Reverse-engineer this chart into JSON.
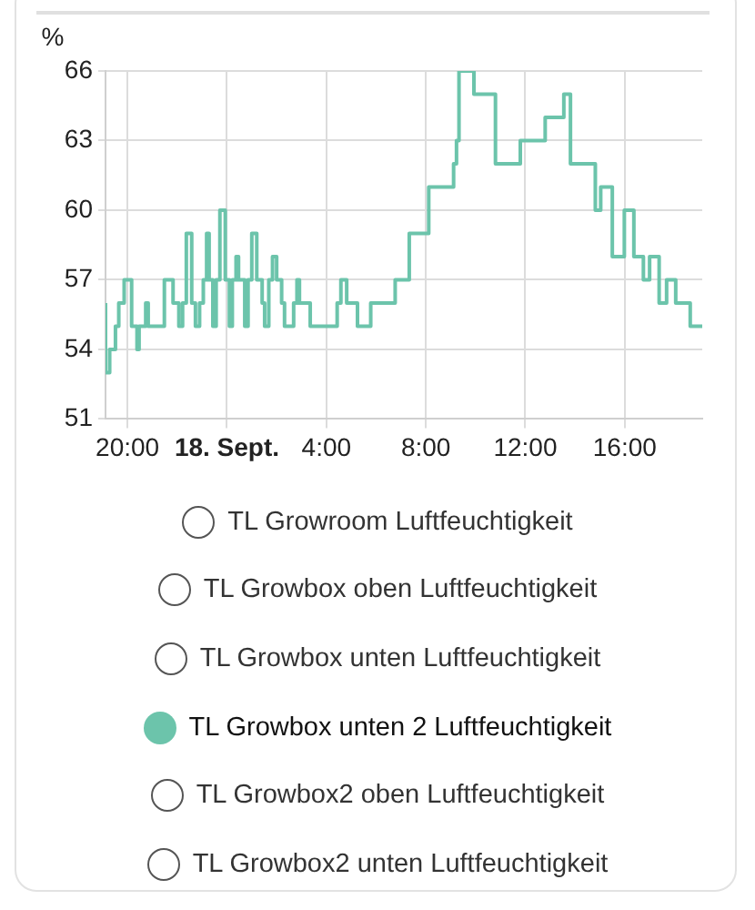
{
  "chart_data": {
    "type": "step",
    "ylabel": "%",
    "xlim": [
      "--09-17T19:07",
      "--09-18T19:07"
    ],
    "xticks": [
      {
        "value": "--09-17T20:00",
        "label": "20:00"
      },
      {
        "value": "--09-18T00:00",
        "label": "18. Sept."
      },
      {
        "value": "--09-18T04:00",
        "label": "4:00"
      },
      {
        "value": "--09-18T08:00",
        "label": "8:00"
      },
      {
        "value": "--09-18T12:00",
        "label": "12:00"
      },
      {
        "value": "--09-18T16:00",
        "label": "16:00"
      }
    ],
    "ylim": [
      51,
      66
    ],
    "yticks": [
      51,
      54,
      57,
      60,
      63,
      66
    ],
    "grid": true,
    "legend": "bottom",
    "marker": "none",
    "line_style": "solid",
    "x": [
      "--09-17T19:07",
      "--09-17T19:17",
      "--09-17T19:31",
      "--09-17T19:39",
      "--09-17T19:52",
      "--09-17T20:10",
      "--09-17T20:23",
      "--09-17T20:28",
      "--09-17T20:44",
      "--09-17T20:50",
      "--09-17T21:29",
      "--09-17T21:50",
      "--09-17T22:04",
      "--09-17T22:13",
      "--09-17T22:22",
      "--09-17T22:35",
      "--09-17T22:44",
      "--09-17T22:54",
      "--09-17T23:03",
      "--09-17T23:11",
      "--09-17T23:17",
      "--09-17T23:26",
      "--09-17T23:34",
      "--09-17T23:43",
      "--09-17T23:56",
      "--09-18T00:06",
      "--09-18T00:13",
      "--09-18T00:22",
      "--09-18T00:28",
      "--09-18T00:43",
      "--09-18T00:51",
      "--09-18T01:00",
      "--09-18T01:12",
      "--09-18T01:25",
      "--09-18T01:31",
      "--09-18T01:41",
      "--09-18T01:50",
      "--09-18T02:00",
      "--09-18T02:12",
      "--09-18T02:19",
      "--09-18T02:41",
      "--09-18T02:49",
      "--09-18T02:55",
      "--09-18T03:21",
      "--09-18T04:26",
      "--09-18T04:35",
      "--09-18T04:49",
      "--09-18T05:15",
      "--09-18T05:47",
      "--09-18T06:46",
      "--09-18T07:20",
      "--09-18T08:07",
      "--09-18T09:07",
      "--09-18T09:14",
      "--09-18T09:20",
      "--09-18T09:56",
      "--09-18T10:48",
      "--09-18T11:48",
      "--09-18T12:48",
      "--09-18T13:33",
      "--09-18T13:49",
      "--09-18T14:49",
      "--09-18T15:02",
      "--09-18T15:30",
      "--09-18T15:59",
      "--09-18T16:22",
      "--09-18T16:45",
      "--09-18T17:00",
      "--09-18T17:23",
      "--09-18T17:41",
      "--09-18T18:03",
      "--09-18T18:38",
      "--09-18T19:01",
      "--09-18T19:07"
    ],
    "series": [
      {
        "name": "TL Growroom Luftfeuchtigkeit",
        "values": [
          null,
          null,
          null,
          null,
          null,
          null,
          null,
          null,
          null,
          null,
          null,
          null,
          null,
          null,
          null,
          null,
          null,
          null,
          null,
          null,
          null,
          null,
          null,
          null,
          null,
          null,
          null,
          null,
          null,
          null,
          null,
          null,
          null,
          null,
          null,
          null,
          null,
          null,
          null,
          null,
          null,
          null,
          null,
          null,
          null,
          null,
          null,
          null,
          null,
          null,
          null,
          null,
          null,
          null,
          null,
          null,
          null,
          null,
          null,
          null,
          null,
          null,
          null,
          null,
          null,
          null,
          null,
          null,
          null,
          null,
          null,
          null,
          null,
          null
        ]
      },
      {
        "name": "TL Growbox oben Luftfeuchtigkeit",
        "values": [
          null,
          null,
          null,
          null,
          null,
          null,
          null,
          null,
          null,
          null,
          null,
          null,
          null,
          null,
          null,
          null,
          null,
          null,
          null,
          null,
          null,
          null,
          null,
          null,
          null,
          null,
          null,
          null,
          null,
          null,
          null,
          null,
          null,
          null,
          null,
          null,
          null,
          null,
          null,
          null,
          null,
          null,
          null,
          null,
          null,
          null,
          null,
          null,
          null,
          null,
          null,
          null,
          null,
          null,
          null,
          null,
          null,
          null,
          null,
          null,
          null,
          null,
          null,
          null,
          null,
          null,
          null,
          null,
          null,
          null,
          null,
          null,
          null,
          null
        ]
      },
      {
        "name": "TL Growbox unten Luftfeuchtigkeit",
        "values": [
          null,
          null,
          null,
          null,
          null,
          null,
          null,
          null,
          null,
          null,
          null,
          null,
          null,
          null,
          null,
          null,
          null,
          null,
          null,
          null,
          null,
          null,
          null,
          null,
          null,
          null,
          null,
          null,
          null,
          null,
          null,
          null,
          null,
          null,
          null,
          null,
          null,
          null,
          null,
          null,
          null,
          null,
          null,
          null,
          null,
          null,
          null,
          null,
          null,
          null,
          null,
          null,
          null,
          null,
          null,
          null,
          null,
          null,
          null,
          null,
          null,
          null,
          null,
          null,
          null,
          null,
          null,
          null,
          null,
          null,
          null,
          null,
          null,
          null
        ]
      },
      {
        "name": "TL Growbox unten 2 Luftfeuchtigkeit",
        "color": "#6cc4ab",
        "values": [
          56,
          53,
          54,
          55,
          56,
          57,
          55,
          54,
          55,
          56,
          55,
          57,
          56,
          55,
          56,
          59,
          56,
          55,
          56,
          57,
          59,
          57,
          55,
          57,
          60,
          57,
          55,
          57,
          58,
          57,
          55,
          57,
          59,
          57,
          56,
          55,
          57,
          58,
          57,
          56,
          55,
          56,
          57,
          56,
          55,
          56,
          57,
          56,
          55,
          56,
          57,
          59,
          61,
          62,
          63,
          66,
          65,
          62,
          63,
          64,
          65,
          62,
          60,
          61,
          58,
          60,
          58,
          57,
          58,
          56,
          57,
          56,
          55,
          55
        ]
      },
      {
        "name": "TL Growbox2 oben Luftfeuchtigkeit",
        "values": [
          null,
          null,
          null,
          null,
          null,
          null,
          null,
          null,
          null,
          null,
          null,
          null,
          null,
          null,
          null,
          null,
          null,
          null,
          null,
          null,
          null,
          null,
          null,
          null,
          null,
          null,
          null,
          null,
          null,
          null,
          null,
          null,
          null,
          null,
          null,
          null,
          null,
          null,
          null,
          null,
          null,
          null,
          null,
          null,
          null,
          null,
          null,
          null,
          null,
          null,
          null,
          null,
          null,
          null,
          null,
          null,
          null,
          null,
          null,
          null,
          null,
          null,
          null,
          null,
          null,
          null,
          null,
          null,
          null,
          null,
          null,
          null,
          null,
          null
        ]
      },
      {
        "name": "TL Growbox2 unten Luftfeuchtigkeit",
        "values": [
          null,
          null,
          null,
          null,
          null,
          null,
          null,
          null,
          null,
          null,
          null,
          null,
          null,
          null,
          null,
          null,
          null,
          null,
          null,
          null,
          null,
          null,
          null,
          null,
          null,
          null,
          null,
          null,
          null,
          null,
          null,
          null,
          null,
          null,
          null,
          null,
          null,
          null,
          null,
          null,
          null,
          null,
          null,
          null,
          null,
          null,
          null,
          null,
          null,
          null,
          null,
          null,
          null,
          null,
          null,
          null,
          null,
          null,
          null,
          null,
          null,
          null,
          null,
          null,
          null,
          null,
          null,
          null,
          null,
          null,
          null,
          null,
          null,
          null
        ]
      }
    ]
  }
}
